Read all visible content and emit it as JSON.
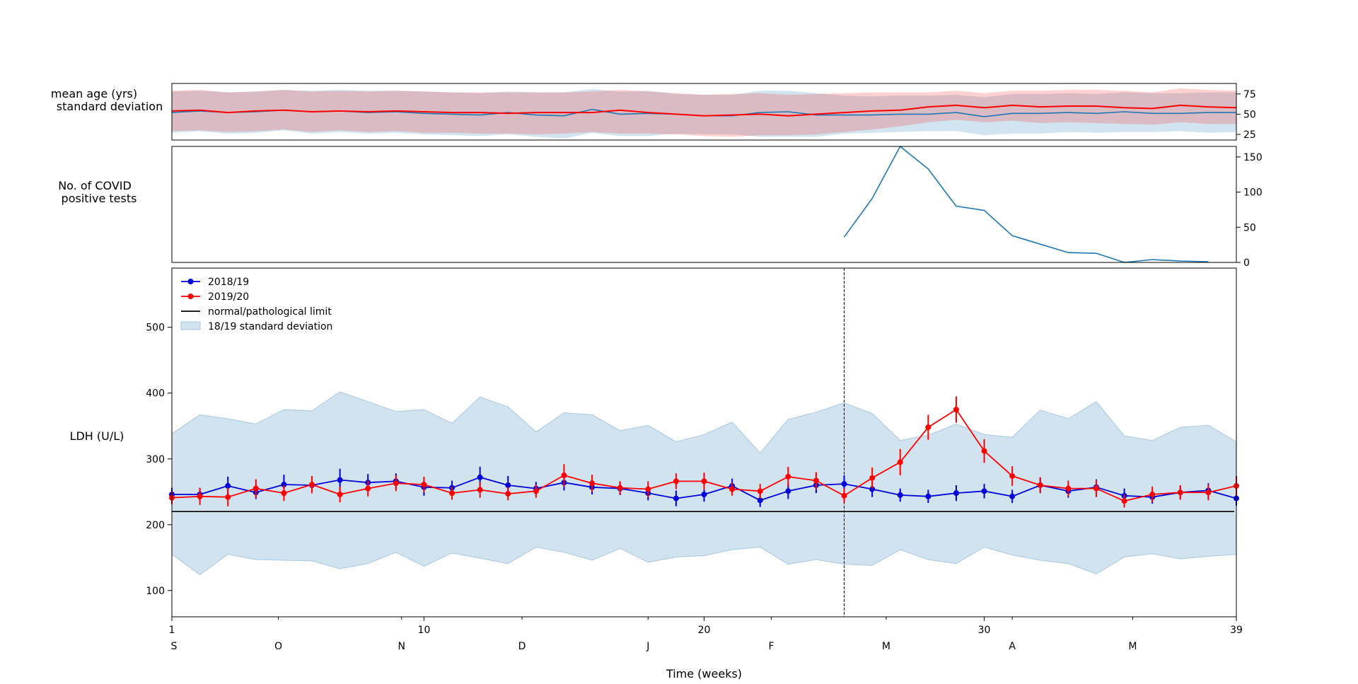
{
  "chart_data": [
    {
      "panel": "age",
      "type": "line",
      "ylabel_lines": [
        "mean age (yrs)",
        "standard deviation"
      ],
      "ylim": [
        18,
        88
      ],
      "yticks": [
        25,
        50,
        75
      ],
      "x": [
        1,
        2,
        3,
        4,
        5,
        6,
        7,
        8,
        9,
        10,
        11,
        12,
        13,
        14,
        15,
        16,
        17,
        18,
        19,
        20,
        21,
        22,
        23,
        24,
        25,
        26,
        27,
        28,
        29,
        30,
        31,
        32,
        33,
        34,
        35,
        36,
        37,
        38,
        39
      ],
      "series": [
        {
          "color": "#1f77b4",
          "values": [
            52,
            54,
            52,
            53,
            55,
            53,
            54,
            52,
            53,
            51,
            50,
            49,
            52,
            49,
            48,
            56,
            50,
            51,
            50,
            48,
            48,
            52,
            53,
            49,
            49,
            49,
            50,
            50,
            52,
            47,
            51,
            51,
            52,
            51,
            53,
            51,
            51,
            52,
            52
          ],
          "lower": [
            27,
            29,
            26,
            27,
            30,
            26,
            28,
            26,
            27,
            25,
            24,
            23,
            25,
            22,
            20,
            27,
            23,
            23,
            26,
            25,
            25,
            22,
            22,
            22,
            26,
            27,
            28,
            29,
            29,
            24,
            26,
            26,
            28,
            27,
            28,
            28,
            29,
            27,
            28
          ],
          "upper": [
            78,
            79,
            77,
            78,
            80,
            79,
            80,
            79,
            79,
            78,
            77,
            76,
            78,
            77,
            77,
            81,
            78,
            79,
            75,
            74,
            74,
            79,
            79,
            76,
            73,
            72,
            73,
            73,
            74,
            71,
            75,
            75,
            76,
            75,
            77,
            76,
            76,
            77,
            77
          ]
        },
        {
          "color": "#ff0000",
          "values": [
            54,
            55,
            52,
            54,
            55,
            53,
            54,
            53,
            54,
            53,
            52,
            52,
            51,
            52,
            52,
            52,
            55,
            52,
            50,
            48,
            49,
            50,
            48,
            50,
            52,
            54,
            55,
            59,
            61,
            58,
            61,
            59,
            60,
            60,
            58,
            57,
            61,
            59,
            58
          ],
          "lower": [
            29,
            30,
            28,
            29,
            31,
            28,
            30,
            28,
            29,
            27,
            27,
            26,
            26,
            25,
            26,
            28,
            26,
            26,
            25,
            23,
            22,
            24,
            24,
            25,
            28,
            31,
            35,
            40,
            43,
            40,
            42,
            39,
            40,
            39,
            38,
            37,
            40,
            38,
            38
          ],
          "upper": [
            79,
            80,
            77,
            78,
            80,
            78,
            79,
            78,
            79,
            78,
            77,
            77,
            77,
            77,
            77,
            78,
            80,
            78,
            76,
            74,
            75,
            76,
            74,
            75,
            76,
            77,
            77,
            77,
            79,
            76,
            79,
            79,
            80,
            80,
            79,
            77,
            82,
            80,
            79
          ]
        }
      ]
    },
    {
      "panel": "covid",
      "type": "line",
      "ylabel_lines": [
        "No. of COVID",
        "positive tests"
      ],
      "ylim": [
        0,
        165
      ],
      "yticks": [
        0,
        50,
        100,
        150
      ],
      "series": [
        {
          "color": "#1f77b4",
          "x": [
            25,
            26,
            27,
            28,
            29,
            30,
            31,
            32,
            33,
            34,
            35,
            36,
            37,
            38
          ],
          "values": [
            36,
            91,
            165,
            133,
            80,
            74,
            38,
            26,
            14,
            13,
            0,
            4,
            2,
            1
          ]
        }
      ]
    },
    {
      "panel": "ldh",
      "type": "line",
      "ylabel": "LDH (U/L)",
      "xlabel": "Time (weeks)",
      "ylim": [
        60,
        590
      ],
      "yticks": [
        100,
        200,
        300,
        400,
        500
      ],
      "xlim": [
        1,
        39
      ],
      "xticks": [
        1,
        10,
        20,
        30,
        39
      ],
      "month_labels": [
        {
          "label": "S",
          "x": 1
        },
        {
          "label": "O",
          "x": 4.8
        },
        {
          "label": "N",
          "x": 9.2
        },
        {
          "label": "D",
          "x": 13.5
        },
        {
          "label": "J",
          "x": 18
        },
        {
          "label": "F",
          "x": 22.4
        },
        {
          "label": "M",
          "x": 26.5
        },
        {
          "label": "A",
          "x": 31
        },
        {
          "label": "M",
          "x": 35.3
        }
      ],
      "vline_x": 25,
      "normal_limit": 220,
      "std_band": {
        "color": "#a6c8e1",
        "upper": [
          338,
          367,
          361,
          353,
          375,
          373,
          402,
          387,
          372,
          375,
          354,
          394,
          379,
          341,
          370,
          367,
          343,
          351,
          326,
          337,
          356,
          309,
          360,
          371,
          385,
          369,
          328,
          336,
          353,
          337,
          333,
          374,
          361,
          387,
          335,
          328,
          348,
          351,
          326
        ],
        "lower": [
          155,
          124,
          155,
          147,
          146,
          145,
          133,
          141,
          158,
          137,
          157,
          149,
          141,
          166,
          158,
          146,
          164,
          143,
          151,
          153,
          162,
          166,
          140,
          147,
          140,
          138,
          162,
          147,
          141,
          166,
          154,
          146,
          141,
          125,
          151,
          156,
          148,
          152,
          155
        ]
      },
      "series": [
        {
          "name": "2018/19",
          "color": "#0000dd",
          "values": [
            246,
            246,
            259,
            249,
            261,
            260,
            268,
            264,
            266,
            257,
            256,
            272,
            260,
            255,
            264,
            257,
            255,
            248,
            240,
            246,
            259,
            237,
            251,
            260,
            262,
            254,
            245,
            243,
            248,
            251,
            243,
            260,
            251,
            257,
            244,
            242,
            249,
            252,
            240
          ],
          "err": [
            10,
            10,
            14,
            10,
            15,
            12,
            17,
            13,
            12,
            13,
            11,
            16,
            14,
            10,
            12,
            11,
            10,
            11,
            12,
            11,
            11,
            10,
            12,
            12,
            13,
            12,
            10,
            10,
            12,
            11,
            10,
            12,
            10,
            12,
            11,
            10,
            10,
            11,
            11
          ]
        },
        {
          "name": "2019/20",
          "color": "#ff0000",
          "values": [
            241,
            243,
            242,
            255,
            248,
            261,
            246,
            255,
            263,
            261,
            248,
            253,
            247,
            251,
            275,
            263,
            256,
            254,
            266,
            266,
            254,
            251,
            273,
            267,
            244,
            271,
            295,
            348,
            375,
            312,
            274,
            260,
            255,
            255,
            236,
            246,
            249,
            249,
            259
          ],
          "err": [
            10,
            13,
            14,
            14,
            12,
            13,
            12,
            12,
            12,
            12,
            10,
            12,
            10,
            10,
            17,
            13,
            10,
            12,
            12,
            13,
            10,
            11,
            15,
            13,
            11,
            16,
            20,
            19,
            20,
            18,
            15,
            12,
            12,
            13,
            10,
            12,
            11,
            12,
            15
          ]
        }
      ],
      "legend": [
        {
          "label": "2018/19",
          "kind": "marker-line",
          "color": "#0000dd"
        },
        {
          "label": "2019/20",
          "kind": "marker-line",
          "color": "#ff0000"
        },
        {
          "label": "normal/pathological limit",
          "kind": "line",
          "color": "#000000"
        },
        {
          "label": "18/19 standard deviation",
          "kind": "patch",
          "color": "#a6c8e1"
        }
      ],
      "legend_position": "top-left"
    }
  ]
}
